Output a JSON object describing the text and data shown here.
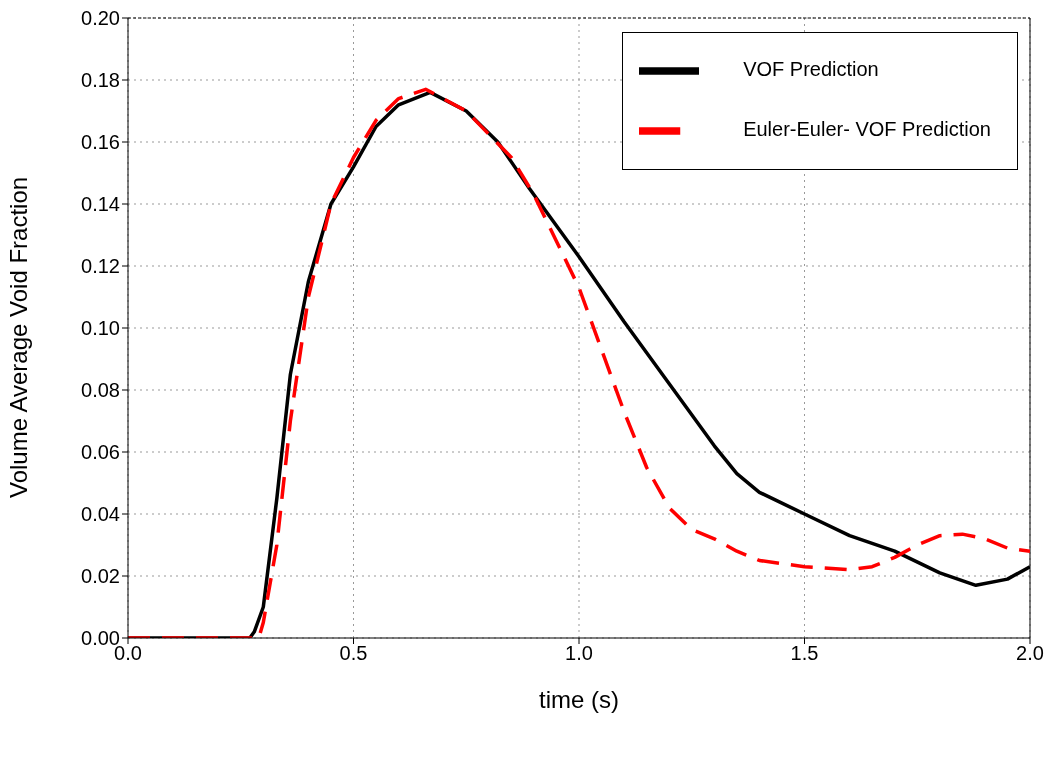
{
  "chart_data": {
    "type": "line",
    "xlabel": "time (s)",
    "ylabel": "Volume Average Void Fraction",
    "xlim": [
      0,
      2
    ],
    "ylim": [
      0,
      0.2
    ],
    "xticks": [
      {
        "value": 0,
        "label": "0.0"
      },
      {
        "value": 0.5,
        "label": "0.5"
      },
      {
        "value": 1,
        "label": "1.0"
      },
      {
        "value": 1.5,
        "label": "1.5"
      },
      {
        "value": 2,
        "label": "2.0"
      }
    ],
    "yticks": [
      {
        "value": 0,
        "label": "0.00"
      },
      {
        "value": 0.02,
        "label": "0.02"
      },
      {
        "value": 0.04,
        "label": "0.04"
      },
      {
        "value": 0.06,
        "label": "0.06"
      },
      {
        "value": 0.08,
        "label": "0.08"
      },
      {
        "value": 0.1,
        "label": "0.10"
      },
      {
        "value": 0.12,
        "label": "0.12"
      },
      {
        "value": 0.14,
        "label": "0.14"
      },
      {
        "value": 0.16,
        "label": "0.16"
      },
      {
        "value": 0.18,
        "label": "0.18"
      },
      {
        "value": 0.2,
        "label": "0.20"
      }
    ],
    "grid": true,
    "legend": "top right",
    "marker": "none",
    "series": [
      {
        "name": "VOF Prediction",
        "color": "#000000",
        "line_style": "solid",
        "x": [
          0,
          0.27,
          0.28,
          0.3,
          0.33,
          0.36,
          0.4,
          0.45,
          0.5,
          0.55,
          0.6,
          0.67,
          0.75,
          0.82,
          0.89,
          1.0,
          1.1,
          1.2,
          1.3,
          1.35,
          1.4,
          1.5,
          1.6,
          1.7,
          1.8,
          1.88,
          1.95,
          2.0
        ],
        "values": [
          0,
          0,
          0.002,
          0.01,
          0.045,
          0.085,
          0.115,
          0.14,
          0.152,
          0.165,
          0.172,
          0.176,
          0.17,
          0.16,
          0.145,
          0.123,
          0.102,
          0.082,
          0.062,
          0.053,
          0.047,
          0.04,
          0.033,
          0.028,
          0.021,
          0.017,
          0.019,
          0.023
        ]
      },
      {
        "name": "Euler-Euler- VOF Prediction",
        "color": "#ff0000",
        "line_style": "dashed",
        "x": [
          0,
          0.29,
          0.3,
          0.33,
          0.36,
          0.4,
          0.45,
          0.5,
          0.55,
          0.6,
          0.66,
          0.75,
          0.85,
          0.9,
          0.95,
          1.0,
          1.05,
          1.1,
          1.15,
          1.2,
          1.25,
          1.3,
          1.35,
          1.4,
          1.5,
          1.6,
          1.65,
          1.7,
          1.75,
          1.8,
          1.85,
          1.9,
          1.95,
          2.0
        ],
        "values": [
          0,
          0,
          0.005,
          0.03,
          0.07,
          0.11,
          0.14,
          0.155,
          0.167,
          0.174,
          0.177,
          0.17,
          0.155,
          0.143,
          0.128,
          0.113,
          0.093,
          0.073,
          0.055,
          0.042,
          0.035,
          0.032,
          0.028,
          0.025,
          0.023,
          0.022,
          0.023,
          0.026,
          0.03,
          0.033,
          0.0335,
          0.032,
          0.029,
          0.028
        ]
      }
    ]
  }
}
